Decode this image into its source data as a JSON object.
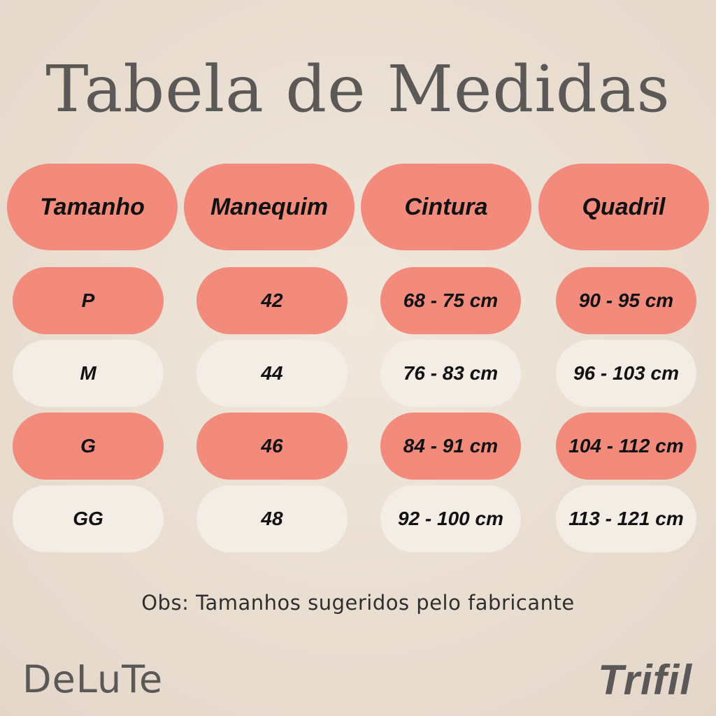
{
  "title": "Tabela de Medidas",
  "colors": {
    "accent": "#f28b7c",
    "cream": "#f4ede6",
    "background": "#ebe0d4",
    "text": "#5b5958"
  },
  "table": {
    "headers": [
      "Tamanho",
      "Manequim",
      "Cintura",
      "Quadril"
    ],
    "rows": [
      [
        "P",
        "42",
        "68 - 75 cm",
        "90 - 95 cm"
      ],
      [
        "M",
        "44",
        "76 - 83 cm",
        "96 - 103 cm"
      ],
      [
        "G",
        "46",
        "84 - 91 cm",
        "104 - 112 cm"
      ],
      [
        "GG",
        "48",
        "92 - 100 cm",
        "113 - 121 cm"
      ]
    ]
  },
  "note": "Obs: Tamanhos sugeridos pelo fabricante",
  "brands": {
    "left": "DeLuTe",
    "right": "Trifil"
  }
}
